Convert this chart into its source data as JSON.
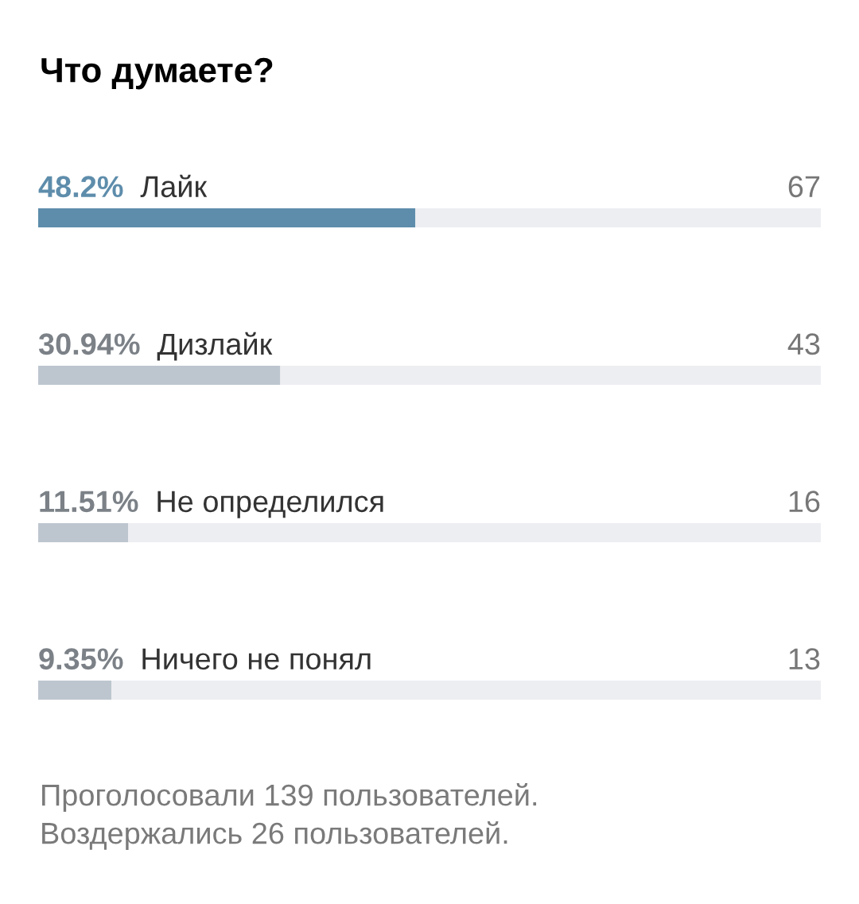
{
  "chart_data": {
    "type": "bar",
    "orientation": "horizontal",
    "stacked": true,
    "title": "Что думаете?",
    "categories": [
      "Лайк",
      "Дизлайк",
      "Не определился",
      "Ничего не понял"
    ],
    "series": [
      {
        "values": [
          48.2,
          30.94,
          11.51,
          9.35
        ],
        "colors": [
          "#5e8dab",
          "#bdc6cf",
          "#bdc6cf",
          "#bdc6cf"
        ],
        "value_labels": [
          "48.2%",
          "30.94%",
          "11.51%",
          "9.35%"
        ]
      },
      {
        "values": [
          51.8,
          69.06,
          88.49,
          90.65
        ],
        "color": "#edeef2"
      }
    ],
    "xlim": [
      0,
      100
    ],
    "tick_labels": false,
    "annotations": [
      "67",
      "43",
      "16",
      "13",
      "Проголосовали 139 пользователей.",
      "Воздержались 26 пользователей."
    ]
  }
}
